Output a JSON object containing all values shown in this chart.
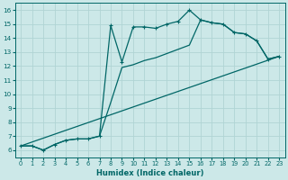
{
  "xlabel": "Humidex (Indice chaleur)",
  "background_color": "#cce8e8",
  "grid_color": "#b0d4d4",
  "line_color": "#006666",
  "xlim": [
    -0.5,
    23.5
  ],
  "ylim": [
    5.5,
    16.5
  ],
  "xticks": [
    0,
    1,
    2,
    3,
    4,
    5,
    6,
    7,
    8,
    9,
    10,
    11,
    12,
    13,
    14,
    15,
    16,
    17,
    18,
    19,
    20,
    21,
    22,
    23
  ],
  "yticks": [
    6,
    7,
    8,
    9,
    10,
    11,
    12,
    13,
    14,
    15,
    16
  ],
  "curve1_x": [
    0,
    1,
    2,
    3,
    4,
    5,
    6,
    7,
    8,
    9,
    10,
    11,
    12,
    13,
    14,
    15,
    16,
    17,
    18,
    19,
    20,
    21,
    22,
    23
  ],
  "curve1_y": [
    6.3,
    6.3,
    6.0,
    6.4,
    6.7,
    6.8,
    6.8,
    7.0,
    14.9,
    12.3,
    14.8,
    14.8,
    14.7,
    15.0,
    15.2,
    16.0,
    15.3,
    15.1,
    15.0,
    14.4,
    14.3,
    13.8,
    12.5,
    12.7
  ],
  "curve2_x": [
    0,
    1,
    2,
    3,
    4,
    5,
    6,
    7,
    8,
    9,
    10,
    11,
    12,
    13,
    14,
    15,
    16,
    17,
    18,
    19,
    20,
    21,
    22,
    23
  ],
  "curve2_y": [
    6.3,
    6.3,
    6.0,
    6.4,
    6.7,
    6.8,
    6.8,
    7.0,
    9.4,
    11.9,
    12.1,
    12.4,
    12.6,
    12.9,
    13.2,
    13.5,
    15.3,
    15.1,
    15.0,
    14.4,
    14.3,
    13.8,
    12.5,
    12.7
  ],
  "curve3_x": [
    0,
    23
  ],
  "curve3_y": [
    6.3,
    12.7
  ]
}
